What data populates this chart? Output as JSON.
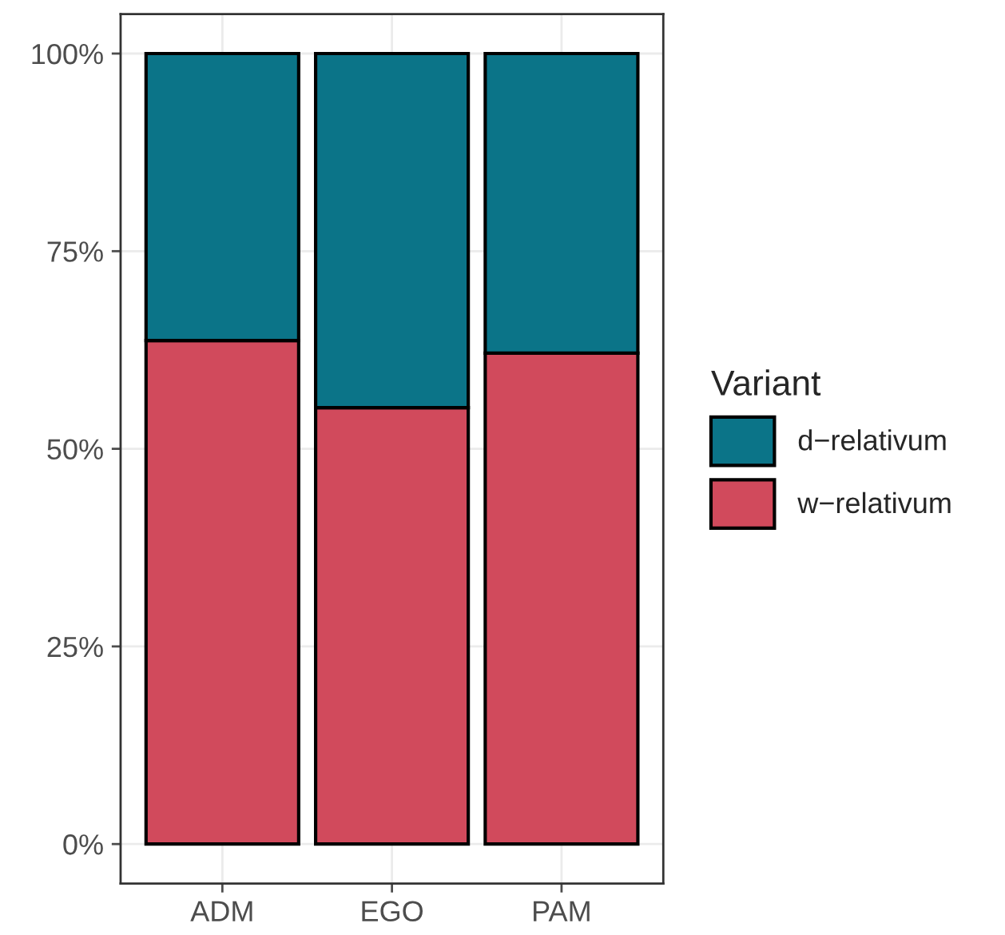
{
  "chart_data": {
    "type": "bar",
    "stacked": true,
    "categories": [
      "ADM",
      "EGO",
      "PAM"
    ],
    "series": [
      {
        "name": "w−relativum",
        "color": "#d14a5c",
        "values": [
          63.7,
          55.2,
          62.1
        ]
      },
      {
        "name": "d−relativum",
        "color": "#0b7488",
        "values": [
          36.3,
          44.8,
          37.9
        ]
      }
    ],
    "legend_title": "Variant",
    "legend": "right",
    "grid": true,
    "ylim": [
      -5,
      105
    ],
    "yticks": [
      {
        "value": 0,
        "label": "0%"
      },
      {
        "value": 25,
        "label": "25%"
      },
      {
        "value": 50,
        "label": "50%"
      },
      {
        "value": 75,
        "label": "75%"
      },
      {
        "value": 100,
        "label": "100%"
      }
    ]
  }
}
